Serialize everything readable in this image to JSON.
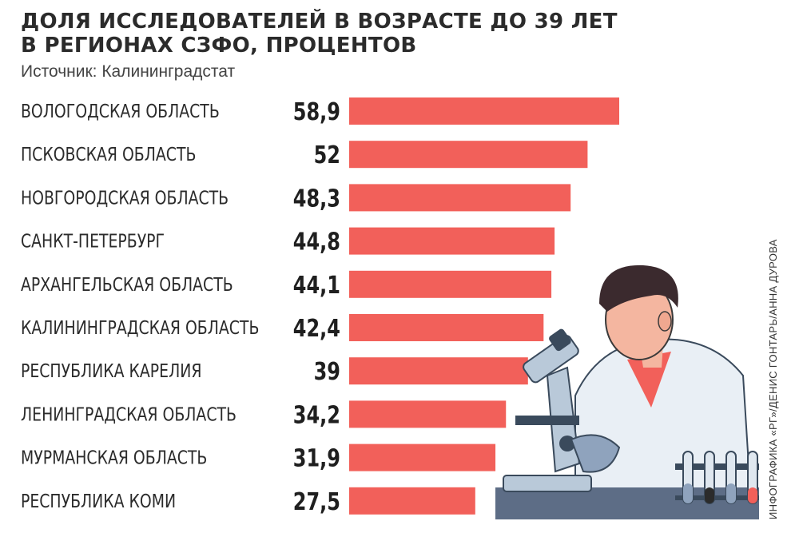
{
  "title": {
    "line1": "ДОЛЯ ИССЛЕДОВАТЕЛЕЙ В ВОЗРАСТЕ ДО 39 ЛЕТ",
    "line2": "В РЕГИОНАХ СЗФО, ПРОЦЕНТОВ"
  },
  "source": "Источник: Калининградстат",
  "credit": "ИНФОГРАФИКА «РГ»/ДЕНИС ГОНТАРЬ/АННА ДУРОВА",
  "colors": {
    "bar": "#f2605a",
    "text": "#2b2b2b"
  },
  "illustration_icon": "scientist-with-microscope-illustration",
  "chart_data": {
    "type": "bar",
    "orientation": "horizontal",
    "categories": [
      "ВОЛОГОДСКАЯ ОБЛАСТЬ",
      "ПСКОВСКАЯ ОБЛАСТЬ",
      "НОВГОРОДСКАЯ ОБЛАСТЬ",
      "САНКТ-ПЕТЕРБУРГ",
      "АРХАНГЕЛЬСКАЯ ОБЛАСТЬ",
      "КАЛИНИНГРАДСКАЯ ОБЛАСТЬ",
      "РЕСПУБЛИКА КАРЕЛИЯ",
      "ЛЕНИНГРАДСКАЯ ОБЛАСТЬ",
      "МУРМАНСКАЯ ОБЛАСТЬ",
      "РЕСПУБЛИКА КОМИ"
    ],
    "values": [
      58.9,
      52,
      48.3,
      44.8,
      44.1,
      42.4,
      39,
      34.2,
      31.9,
      27.5
    ],
    "value_labels": [
      "58,9",
      "52",
      "48,3",
      "44,8",
      "44,1",
      "42,4",
      "39",
      "34,2",
      "31,9",
      "27,5"
    ],
    "title": "ДОЛЯ ИССЛЕДОВАТЕЛЕЙ В ВОЗРАСТЕ ДО 39 ЛЕТ В РЕГИОНАХ СЗФО, ПРОЦЕНТОВ",
    "xlim": [
      0,
      58.9
    ],
    "grid": false,
    "legend": "none"
  }
}
